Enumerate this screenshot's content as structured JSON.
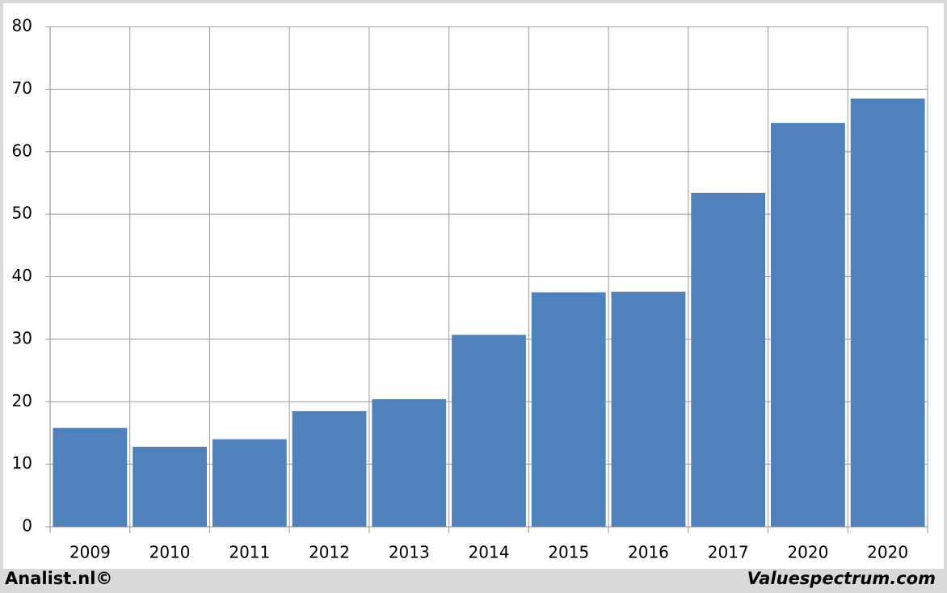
{
  "chart_data": {
    "type": "bar",
    "categories": [
      "2009",
      "2010",
      "2011",
      "2012",
      "2013",
      "2014",
      "2015",
      "2016",
      "2017",
      "2020",
      "2020"
    ],
    "values": [
      15.8,
      12.8,
      14.0,
      18.5,
      20.4,
      30.7,
      37.5,
      37.6,
      53.4,
      64.6,
      68.5
    ],
    "color": "#4f81bd",
    "ylim": [
      0,
      80
    ],
    "yticks": [
      0,
      10,
      20,
      30,
      40,
      50,
      60,
      70,
      80
    ],
    "grid": true
  },
  "footer": {
    "left": "Analist.nl©",
    "right": "Valuespectrum.com"
  }
}
